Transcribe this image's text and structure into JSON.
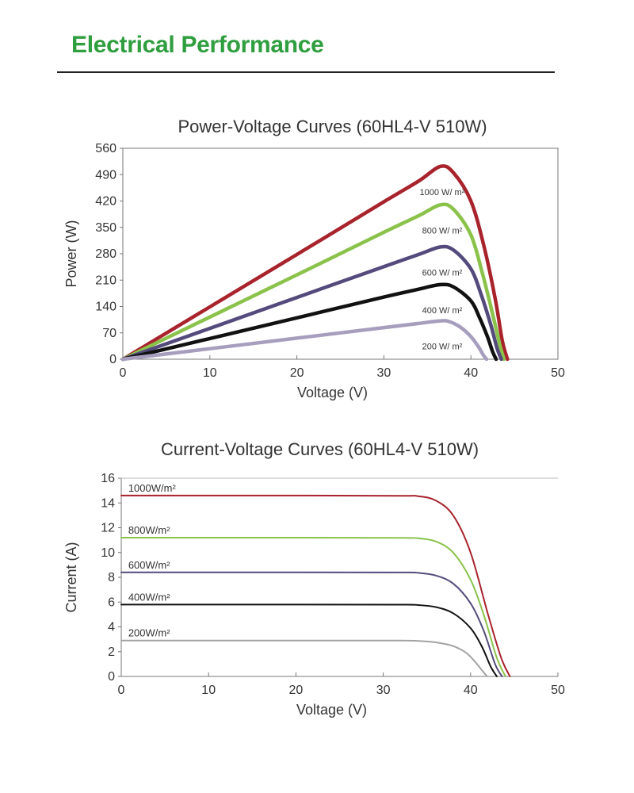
{
  "page": {
    "heading": "Electrical Performance"
  },
  "chart_data": [
    {
      "type": "line",
      "title": "Power-Voltage Curves (60HL4-V 510W)",
      "xlabel": "Voltage (V)",
      "ylabel": "Power (W)",
      "xlim": [
        0,
        50
      ],
      "ylim": [
        0,
        560
      ],
      "xticks": [
        0,
        10,
        20,
        30,
        40,
        50
      ],
      "yticks": [
        0,
        70,
        140,
        210,
        280,
        350,
        420,
        490,
        560
      ],
      "grid": false,
      "frame": "box",
      "series": [
        {
          "name": "1000 W/ m²",
          "color": "#a8232c",
          "x": [
            0,
            10,
            20,
            30,
            34,
            36.5,
            38,
            40,
            41.5,
            42.8,
            43.6,
            44.2
          ],
          "y": [
            0,
            139,
            278,
            418,
            473,
            512,
            495,
            420,
            300,
            160,
            50,
            0
          ]
        },
        {
          "name": "800 W/ m²",
          "color": "#8ac24a",
          "x": [
            0,
            10,
            20,
            30,
            34,
            36.5,
            38,
            40,
            41.3,
            42.5,
            43.3,
            43.8
          ],
          "y": [
            0,
            112,
            224,
            337,
            381,
            410,
            398,
            330,
            230,
            120,
            40,
            0
          ]
        },
        {
          "name": "600 W/ m²",
          "color": "#544a7c",
          "x": [
            0,
            10,
            20,
            30,
            34,
            36.5,
            38,
            40,
            41.2,
            42.3,
            43.0,
            43.5
          ],
          "y": [
            0,
            82,
            164,
            246,
            278,
            298,
            290,
            240,
            170,
            90,
            30,
            0
          ]
        },
        {
          "name": "400 W/ m²",
          "color": "#111111",
          "x": [
            0,
            10,
            20,
            30,
            34,
            36.5,
            38,
            40,
            41.0,
            41.9,
            42.5,
            42.9
          ],
          "y": [
            0,
            55,
            110,
            165,
            186,
            198,
            192,
            155,
            110,
            60,
            20,
            0
          ]
        },
        {
          "name": "200 W/ m²",
          "color": "#a79ebe",
          "x": [
            0,
            10,
            20,
            30,
            34,
            36.5,
            37.5,
            38.8,
            40.0,
            40.9,
            41.4,
            41.8
          ],
          "y": [
            0,
            28,
            56,
            84,
            95,
            102,
            100,
            85,
            60,
            32,
            12,
            0
          ]
        }
      ]
    },
    {
      "type": "line",
      "title": "Current-Voltage Curves (60HL4-V 510W)",
      "xlabel": "Voltage (V)",
      "ylabel": "Current (A)",
      "xlim": [
        0,
        50
      ],
      "ylim": [
        0,
        16
      ],
      "xticks": [
        0,
        10,
        20,
        30,
        40,
        50
      ],
      "yticks": [
        0,
        2,
        4,
        6,
        8,
        10,
        12,
        14,
        16
      ],
      "grid": false,
      "frame": "axes",
      "series": [
        {
          "name": "1000W/m²",
          "color": "#a8232c",
          "x": [
            0,
            20,
            32,
            34,
            36,
            38,
            40,
            42,
            43.5,
            44.5
          ],
          "y": [
            14.6,
            14.6,
            14.58,
            14.55,
            14.2,
            13.0,
            10.0,
            5.0,
            1.5,
            0
          ]
        },
        {
          "name": "800W/m²",
          "color": "#8ac24a",
          "x": [
            0,
            20,
            32,
            34,
            36,
            38,
            40,
            41.5,
            43,
            44
          ],
          "y": [
            11.2,
            11.2,
            11.18,
            11.15,
            10.9,
            10.0,
            7.8,
            5.0,
            1.5,
            0
          ]
        },
        {
          "name": "600W/m²",
          "color": "#544a7c",
          "x": [
            0,
            20,
            32,
            34,
            36,
            38,
            40,
            41.5,
            42.8,
            43.6
          ],
          "y": [
            8.4,
            8.4,
            8.39,
            8.36,
            8.15,
            7.5,
            5.9,
            3.7,
            1.0,
            0
          ]
        },
        {
          "name": "400W/m²",
          "color": "#111111",
          "x": [
            0,
            20,
            32,
            34,
            36,
            38,
            40,
            41.3,
            42.3,
            43.0
          ],
          "y": [
            5.8,
            5.8,
            5.79,
            5.76,
            5.6,
            5.1,
            3.9,
            2.4,
            0.8,
            0
          ]
        },
        {
          "name": "200W/m²",
          "color": "#a3a3a3",
          "x": [
            0,
            20,
            32,
            34,
            36,
            38,
            39.5,
            40.5,
            41.3,
            41.9
          ],
          "y": [
            2.9,
            2.9,
            2.89,
            2.87,
            2.75,
            2.45,
            1.9,
            1.2,
            0.5,
            0
          ]
        }
      ]
    }
  ]
}
